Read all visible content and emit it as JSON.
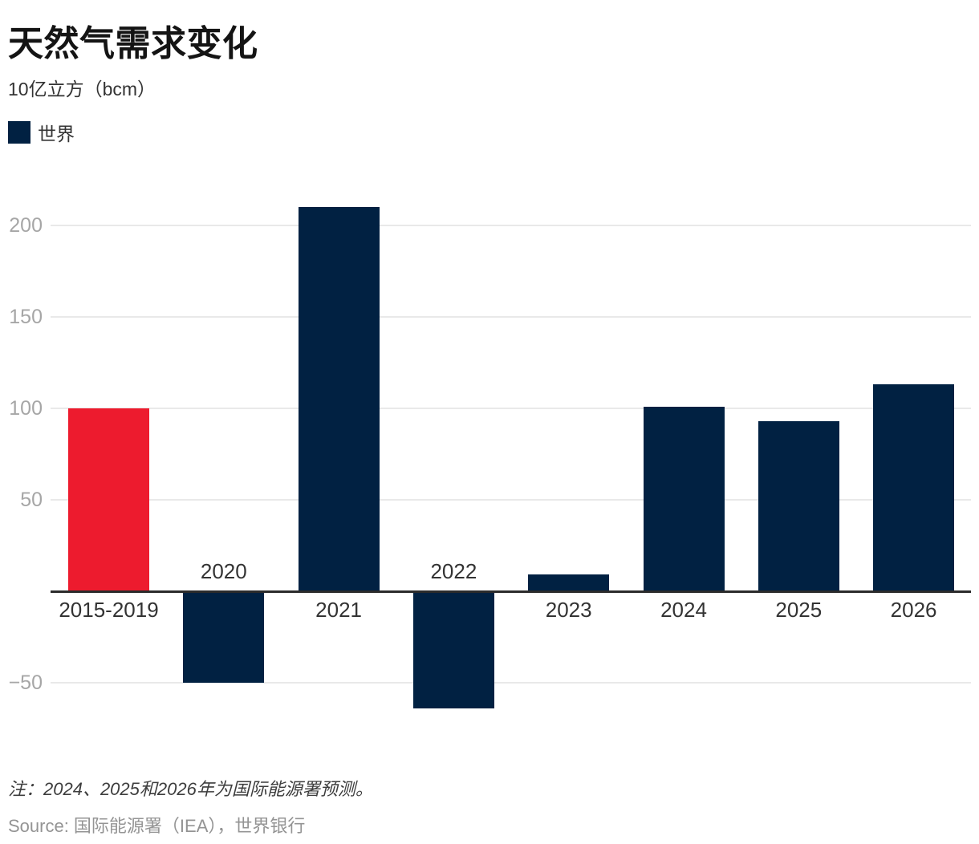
{
  "header": {
    "title": "天然气需求变化",
    "subtitle": "10亿立方（bcm）"
  },
  "legend": {
    "label": "世界",
    "swatch_color": "#012142"
  },
  "chart_data": {
    "type": "bar",
    "title": "天然气需求变化",
    "ylabel": "10亿立方（bcm）",
    "series_name": "世界",
    "categories": [
      "2015-2019",
      "2020",
      "2021",
      "2022",
      "2023",
      "2024",
      "2025",
      "2026"
    ],
    "values": [
      100,
      -50,
      210,
      -64,
      9,
      101,
      93,
      113
    ],
    "bar_colors": [
      "#ed1b2e",
      "#012142",
      "#012142",
      "#012142",
      "#012142",
      "#012142",
      "#012142",
      "#012142"
    ],
    "y_ticks": [
      200,
      150,
      100,
      50,
      -50
    ],
    "y_tick_labels": [
      "200",
      "150",
      "100",
      "50",
      "−50"
    ],
    "ylim": [
      -80,
      227
    ],
    "grid": true,
    "legend_position": "top-left"
  },
  "footer": {
    "note": "注：2024、2025和2026年为国际能源署预测。",
    "source": "Source: 国际能源署（IEA），世界银行"
  },
  "colors": {
    "accent_red": "#ed1b2e",
    "brand_navy": "#012142",
    "gridline": "#e9e9e9",
    "axis": "#2b2b2b",
    "tick_text": "#a6a6a6",
    "label_text": "#333333"
  }
}
